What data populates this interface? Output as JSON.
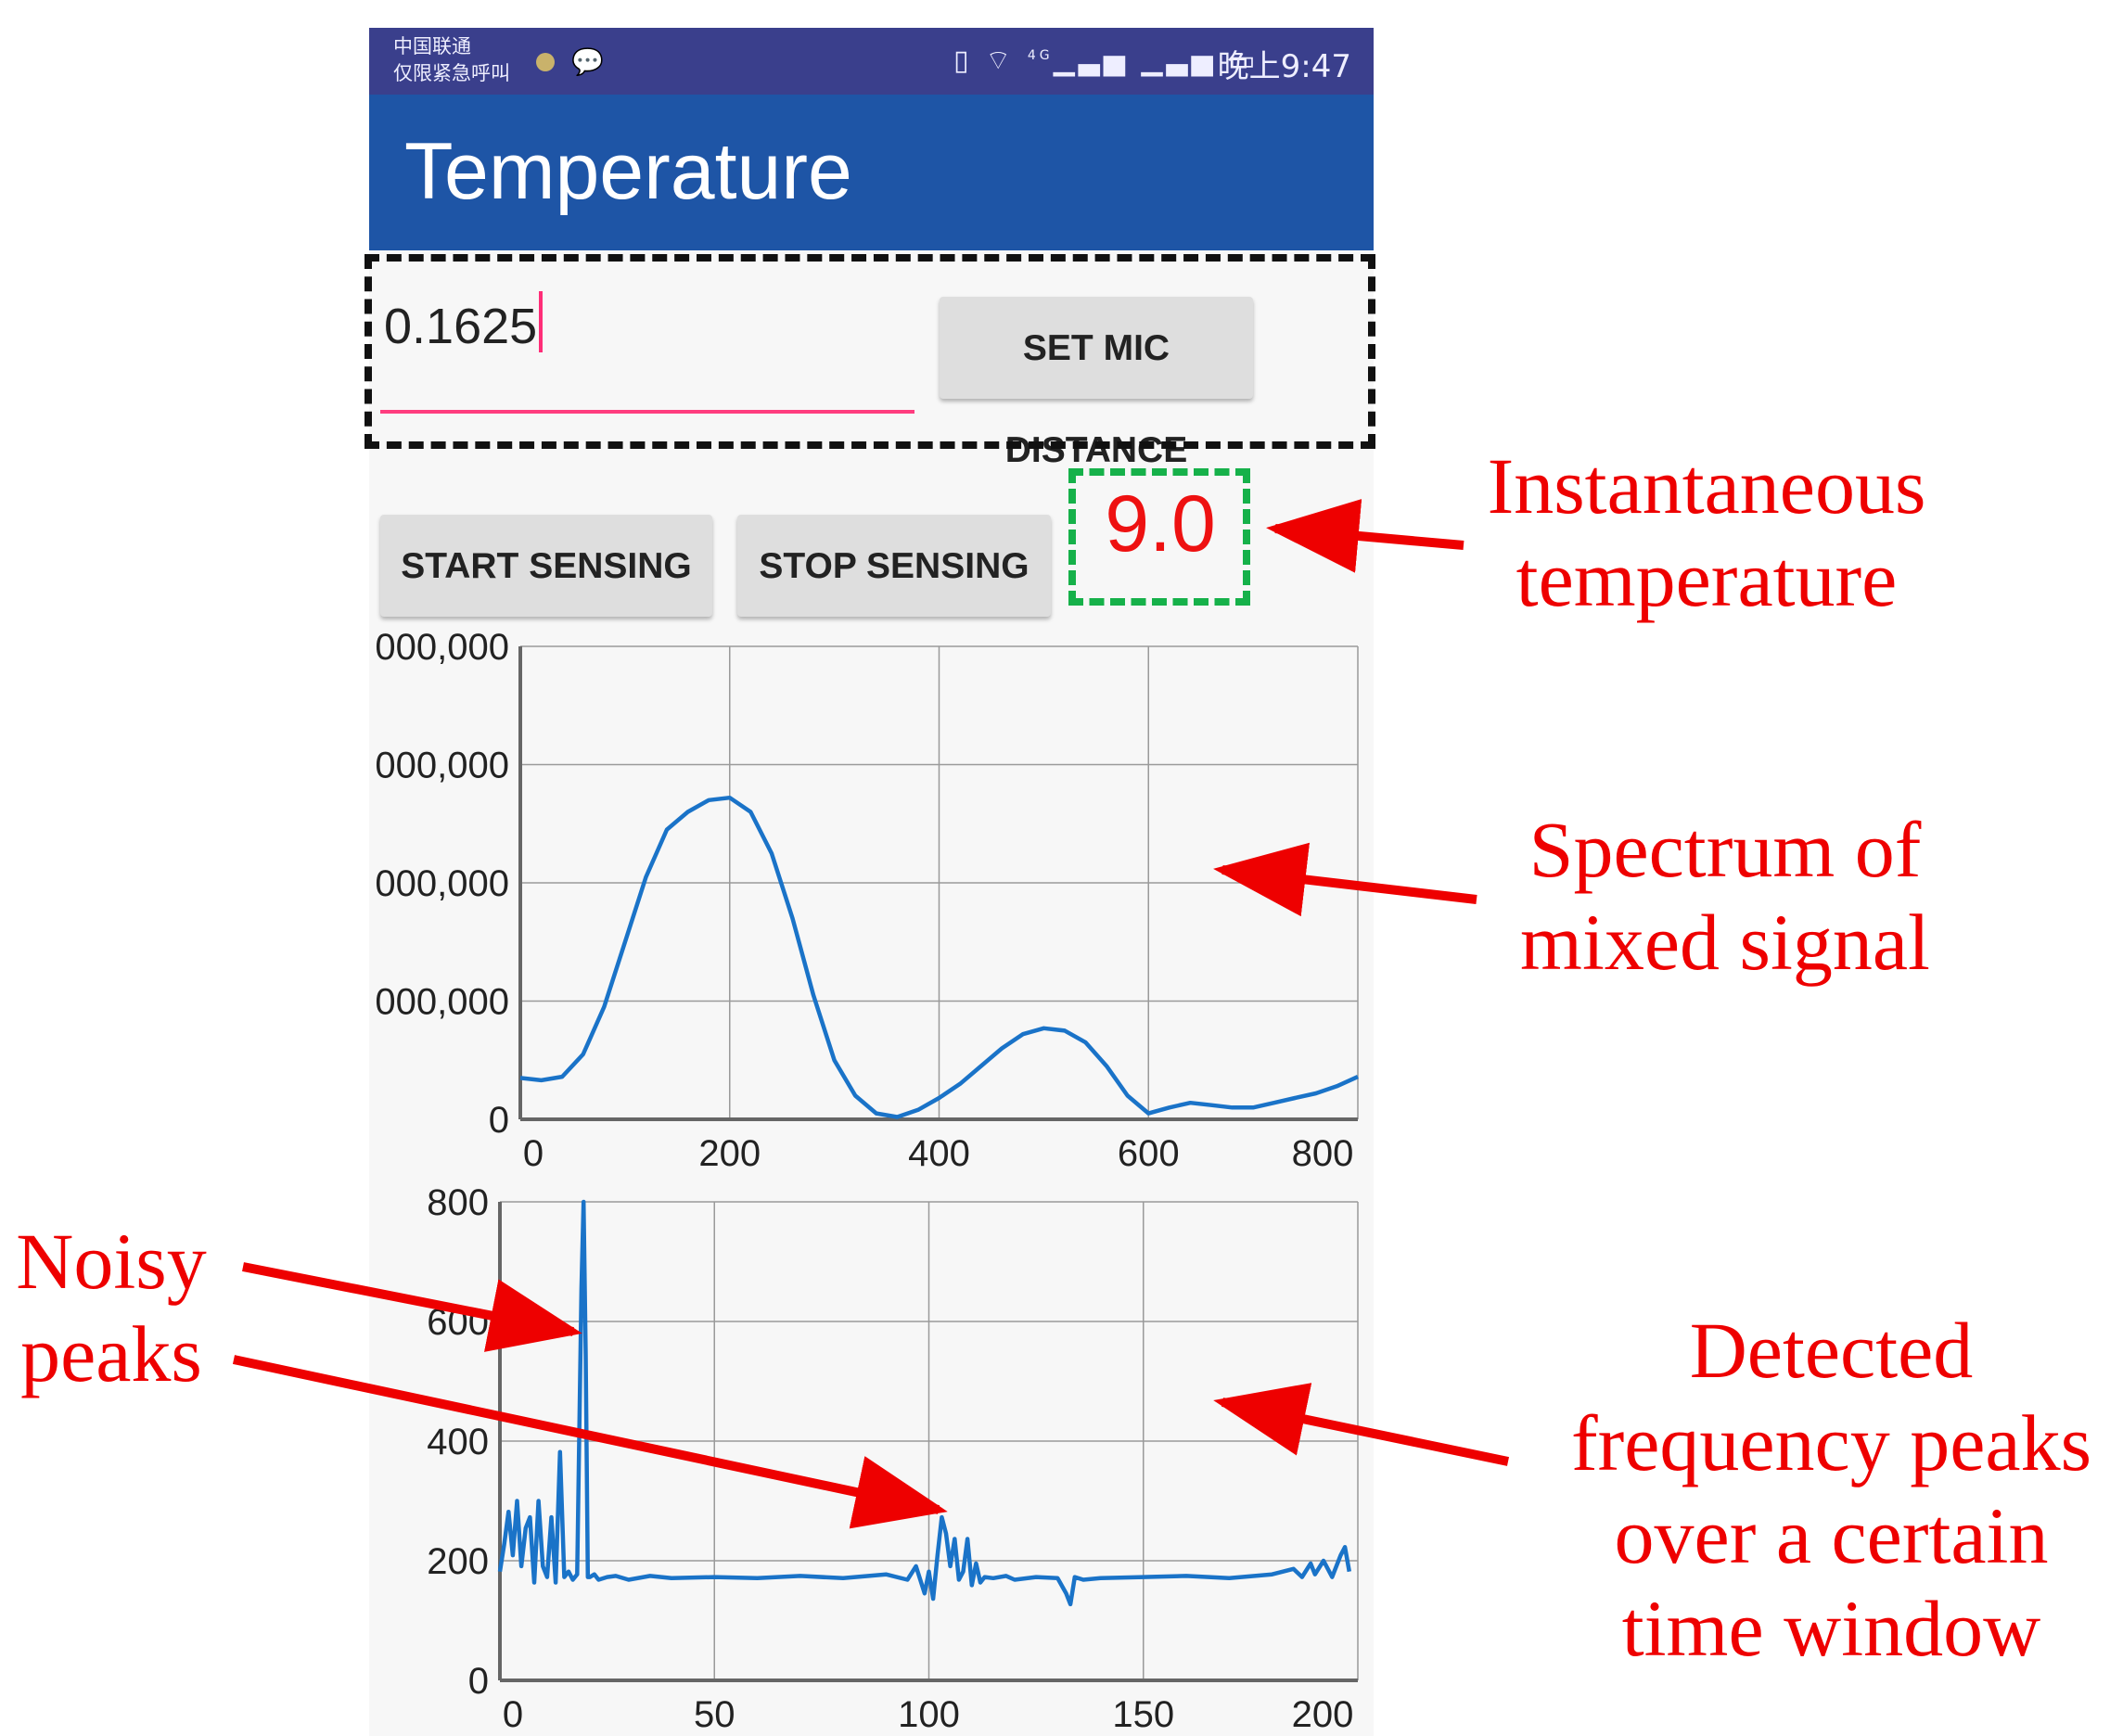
{
  "status_bar": {
    "carrier_line1": "中国联通",
    "carrier_line2": "仅限紧急呼叫",
    "icons": [
      "vibrate-icon",
      "wifi-icon",
      "signal-4g-icon",
      "signal-icon",
      "battery-icon"
    ],
    "network_label": "4G",
    "time": "晚上9:47"
  },
  "app_bar": {
    "title": "Temperature"
  },
  "mic_distance": {
    "value": "0.1625",
    "button_label": "SET MIC DISTANCE"
  },
  "controls": {
    "start_label": "START SENSING",
    "stop_label": "STOP SENSING"
  },
  "temperature_reading": "9.0",
  "colors": {
    "status_bar": "#3a3f8c",
    "app_bar": "#1e55a6",
    "accent": "#ff3d7f",
    "plot_line": "#1a73c8",
    "annotation": "#ee0000",
    "highlight_green": "#16b14a"
  },
  "annotations": {
    "instantaneous": [
      "Instantaneous",
      "temperature"
    ],
    "spectrum": [
      "Spectrum of",
      "mixed signal"
    ],
    "noisy": [
      "Noisy",
      "peaks"
    ],
    "detected": [
      "Detected",
      "frequency peaks",
      "over a certain",
      "time window"
    ]
  },
  "chart_data": [
    {
      "type": "line",
      "name": "spectrum",
      "x_ticks": [
        "0",
        "200",
        "400",
        "600",
        "800"
      ],
      "y_ticks": [
        "0",
        "000,000",
        "000,000",
        "000,000",
        "000,000"
      ],
      "xlim": [
        0,
        800
      ],
      "ylim": [
        0,
        4
      ],
      "grid": true,
      "x": [
        0,
        20,
        40,
        60,
        80,
        100,
        120,
        140,
        160,
        180,
        200,
        220,
        240,
        260,
        280,
        300,
        320,
        340,
        360,
        380,
        400,
        420,
        440,
        460,
        480,
        500,
        520,
        540,
        560,
        580,
        600,
        620,
        640,
        660,
        680,
        700,
        720,
        740,
        760,
        780,
        800
      ],
      "y": [
        0.35,
        0.33,
        0.36,
        0.55,
        0.95,
        1.5,
        2.05,
        2.45,
        2.6,
        2.7,
        2.72,
        2.6,
        2.25,
        1.7,
        1.05,
        0.5,
        0.2,
        0.05,
        0.02,
        0.08,
        0.18,
        0.3,
        0.45,
        0.6,
        0.72,
        0.77,
        0.75,
        0.65,
        0.45,
        0.2,
        0.05,
        0.1,
        0.14,
        0.12,
        0.1,
        0.1,
        0.14,
        0.18,
        0.22,
        0.28,
        0.36
      ]
    },
    {
      "type": "line",
      "name": "detected-peaks",
      "x_ticks": [
        "0",
        "50",
        "100",
        "150",
        "200"
      ],
      "y_ticks": [
        "0",
        "200",
        "400",
        "600",
        "800"
      ],
      "xlim": [
        0,
        200
      ],
      "ylim": [
        0,
        880
      ],
      "grid": true,
      "x": [
        0,
        1,
        2,
        3,
        4,
        5,
        6,
        7,
        8,
        9,
        10,
        11,
        12,
        13,
        14,
        15,
        16,
        17,
        18,
        19,
        19.5,
        20,
        20.5,
        21,
        22,
        23,
        25,
        27,
        30,
        35,
        40,
        50,
        60,
        70,
        80,
        90,
        95,
        97,
        99,
        100,
        101,
        102,
        103,
        104,
        105,
        106,
        107,
        108,
        109,
        110,
        111,
        112,
        113,
        115,
        118,
        120,
        125,
        130,
        132,
        133,
        134,
        136,
        140,
        150,
        160,
        170,
        180,
        185,
        187,
        189,
        190,
        192,
        194,
        196,
        197,
        198
      ],
      "y": [
        200,
        250,
        310,
        230,
        330,
        210,
        280,
        300,
        180,
        330,
        210,
        190,
        300,
        180,
        420,
        190,
        200,
        185,
        195,
        720,
        880,
        600,
        190,
        190,
        195,
        185,
        190,
        192,
        185,
        192,
        188,
        190,
        188,
        192,
        188,
        195,
        185,
        210,
        160,
        200,
        150,
        230,
        300,
        270,
        210,
        260,
        185,
        200,
        260,
        175,
        215,
        180,
        190,
        188,
        192,
        185,
        190,
        188,
        160,
        140,
        190,
        185,
        188,
        190,
        192,
        188,
        195,
        205,
        190,
        215,
        195,
        220,
        190,
        230,
        245,
        200
      ]
    }
  ]
}
